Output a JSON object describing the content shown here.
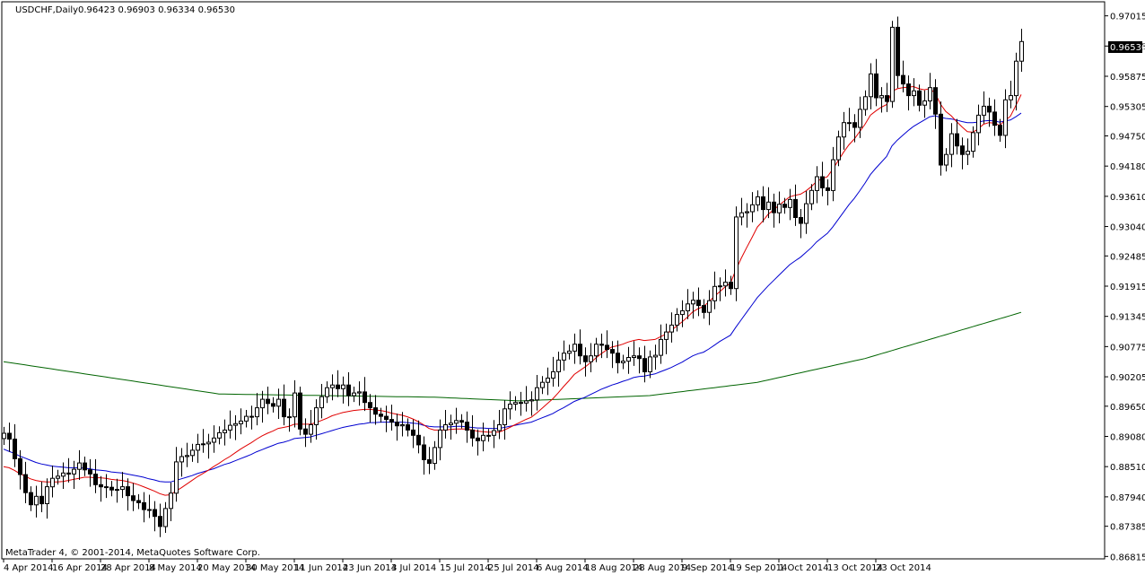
{
  "header": {
    "symbol": "USDCHF,Daily",
    "ohlc": "0.96423 0.96903 0.96334 0.96530"
  },
  "footer": {
    "copyright": "MetaTrader 4, © 2001-2014, MetaQuotes Software Corp."
  },
  "current_price_label": "0.96530",
  "colors": {
    "background": "#ffffff",
    "candle_up_body": "#ffffff",
    "candle_down_body": "#000000",
    "candle_outline": "#000000",
    "ma_fast": "#e00000",
    "ma_medium": "#0000d0",
    "ma_slow": "#006400",
    "price_tag_bg": "#000000",
    "price_tag_text": "#ffffff"
  },
  "chart_data": {
    "type": "candlestick",
    "title": "USDCHF,Daily",
    "ylim": [
      0.8677,
      0.9728
    ],
    "y_ticks": [
      "0.97015",
      "0.96445",
      "0.95875",
      "0.95305",
      "0.94750",
      "0.94180",
      "0.93610",
      "0.93040",
      "0.92485",
      "0.91915",
      "0.91345",
      "0.90775",
      "0.90205",
      "0.89650",
      "0.89080",
      "0.88510",
      "0.87940",
      "0.87385",
      "0.86815"
    ],
    "x_labels": [
      "4 Apr 2014",
      "16 Apr 2014",
      "28 Apr 2014",
      "8 May 2014",
      "20 May 2014",
      "30 May 2014",
      "11 Jun 2014",
      "23 Jun 2014",
      "3 Jul 2014",
      "15 Jul 2014",
      "25 Jul 2014",
      "6 Aug 2014",
      "18 Aug 2014",
      "28 Aug 2014",
      "9 Sep 2014",
      "19 Sep 2014",
      "1 Oct 2014",
      "13 Oct 2014",
      "23 Oct 2014"
    ],
    "x_label_every": 9,
    "close": [
      0.8914,
      0.8903,
      0.8866,
      0.8836,
      0.8802,
      0.8779,
      0.8795,
      0.8781,
      0.8813,
      0.8829,
      0.8833,
      0.8839,
      0.8837,
      0.8846,
      0.8858,
      0.8845,
      0.8837,
      0.8817,
      0.8813,
      0.8812,
      0.8807,
      0.8808,
      0.8813,
      0.8796,
      0.8787,
      0.8783,
      0.877,
      0.877,
      0.8757,
      0.8738,
      0.8772,
      0.8801,
      0.886,
      0.887,
      0.8872,
      0.8882,
      0.8893,
      0.8894,
      0.8897,
      0.8905,
      0.8915,
      0.892,
      0.8929,
      0.8932,
      0.8937,
      0.8946,
      0.8945,
      0.8962,
      0.8978,
      0.897,
      0.8965,
      0.8978,
      0.8945,
      0.8945,
      0.899,
      0.8922,
      0.8912,
      0.893,
      0.8962,
      0.8983,
      0.9,
      0.9005,
      0.8998,
      0.9005,
      0.8985,
      0.899,
      0.8992,
      0.8972,
      0.8962,
      0.895,
      0.8946,
      0.894,
      0.8935,
      0.8928,
      0.893,
      0.892,
      0.891,
      0.8892,
      0.8864,
      0.8857,
      0.8887,
      0.892,
      0.893,
      0.8933,
      0.8938,
      0.8935,
      0.892,
      0.8905,
      0.89,
      0.891,
      0.891,
      0.8919,
      0.893,
      0.896,
      0.8969,
      0.8972,
      0.8971,
      0.8975,
      0.8977,
      0.9,
      0.901,
      0.9018,
      0.903,
      0.9052,
      0.9065,
      0.9069,
      0.9082,
      0.906,
      0.9049,
      0.906,
      0.9082,
      0.908,
      0.9072,
      0.9065,
      0.9047,
      0.905,
      0.9057,
      0.906,
      0.9055,
      0.903,
      0.9058,
      0.9061,
      0.9091,
      0.9105,
      0.9118,
      0.9138,
      0.9145,
      0.9158,
      0.9165,
      0.9155,
      0.9142,
      0.9164,
      0.9191,
      0.9192,
      0.9199,
      0.9187,
      0.9322,
      0.933,
      0.9332,
      0.9345,
      0.936,
      0.9336,
      0.935,
      0.933,
      0.9346,
      0.934,
      0.9355,
      0.9321,
      0.931,
      0.9347,
      0.9372,
      0.9398,
      0.9377,
      0.9372,
      0.943,
      0.9473,
      0.95,
      0.95,
      0.9491,
      0.9525,
      0.9549,
      0.9592,
      0.9547,
      0.9551,
      0.954,
      0.968,
      0.9589,
      0.9573,
      0.9551,
      0.956,
      0.9533,
      0.9541,
      0.9566,
      0.9516,
      0.942,
      0.944,
      0.9479,
      0.9456,
      0.944,
      0.9446,
      0.9481,
      0.9514,
      0.9531,
      0.952,
      0.9495,
      0.9476,
      0.9543,
      0.9551,
      0.9616,
      0.9653
    ],
    "ma_fast": [
      0.8851,
      0.8849,
      0.8844,
      0.8838,
      0.8833,
      0.8828,
      0.8825,
      0.8823,
      0.8822,
      0.8822,
      0.8822,
      0.8823,
      0.8825,
      0.8827,
      0.8829,
      0.8831,
      0.8831,
      0.883,
      0.883,
      0.8829,
      0.8827,
      0.8826,
      0.8825,
      0.8823,
      0.882,
      0.8817,
      0.8813,
      0.8809,
      0.8805,
      0.88,
      0.8797,
      0.8798,
      0.8805,
      0.8811,
      0.8818,
      0.8825,
      0.8832,
      0.8838,
      0.8844,
      0.8851,
      0.8857,
      0.8864,
      0.887,
      0.8877,
      0.8884,
      0.889,
      0.8896,
      0.8903,
      0.8909,
      0.8914,
      0.8918,
      0.8923,
      0.8925,
      0.8927,
      0.8931,
      0.8931,
      0.8931,
      0.8931,
      0.8934,
      0.8938,
      0.8942,
      0.8947,
      0.895,
      0.8953,
      0.8955,
      0.8957,
      0.8958,
      0.8959,
      0.8959,
      0.8958,
      0.8957,
      0.8955,
      0.8952,
      0.895,
      0.8948,
      0.8945,
      0.8941,
      0.8936,
      0.893,
      0.8923,
      0.892,
      0.892,
      0.892,
      0.8921,
      0.8922,
      0.8922,
      0.8922,
      0.892,
      0.8918,
      0.8917,
      0.8916,
      0.8916,
      0.8916,
      0.892,
      0.8925,
      0.893,
      0.8935,
      0.894,
      0.8944,
      0.8952,
      0.8961,
      0.897,
      0.8979,
      0.899,
      0.9002,
      0.9013,
      0.9025,
      0.9032,
      0.9039,
      0.9047,
      0.9056,
      0.9064,
      0.9071,
      0.9077,
      0.9079,
      0.9082,
      0.9086,
      0.9089,
      0.9091,
      0.9089,
      0.909,
      0.9091,
      0.9096,
      0.9101,
      0.9108,
      0.9116,
      0.9124,
      0.9133,
      0.9143,
      0.9149,
      0.9153,
      0.9162,
      0.9172,
      0.9181,
      0.919,
      0.9197,
      0.9222,
      0.9244,
      0.9264,
      0.9283,
      0.9303,
      0.9314,
      0.9327,
      0.9335,
      0.9344,
      0.9352,
      0.936,
      0.9363,
      0.9365,
      0.9371,
      0.9379,
      0.9389,
      0.9394,
      0.9398,
      0.9412,
      0.9428,
      0.9444,
      0.9458,
      0.9469,
      0.9483,
      0.9497,
      0.9514,
      0.9522,
      0.9529,
      0.9534,
      0.9559,
      0.9564,
      0.9566,
      0.9567,
      0.9568,
      0.9564,
      0.9562,
      0.9564,
      0.9556,
      0.9535,
      0.9521,
      0.9513,
      0.9502,
      0.9492,
      0.9483,
      0.9482,
      0.9488,
      0.9497,
      0.95,
      0.9499,
      0.9495,
      0.9504,
      0.9512,
      0.9532,
      0.9553
    ],
    "ma_medium": [
      0.8884,
      0.888,
      0.8876,
      0.8871,
      0.8867,
      0.8863,
      0.8859,
      0.8856,
      0.8854,
      0.8852,
      0.8851,
      0.885,
      0.8849,
      0.8849,
      0.8849,
      0.8848,
      0.8847,
      0.8845,
      0.8844,
      0.8843,
      0.8841,
      0.884,
      0.8839,
      0.8837,
      0.8835,
      0.8833,
      0.8831,
      0.8828,
      0.8826,
      0.8823,
      0.8822,
      0.8822,
      0.8825,
      0.8828,
      0.8831,
      0.8834,
      0.8838,
      0.8841,
      0.8844,
      0.8847,
      0.8851,
      0.8855,
      0.8858,
      0.8862,
      0.8866,
      0.887,
      0.8874,
      0.8879,
      0.8883,
      0.8887,
      0.8891,
      0.8895,
      0.8897,
      0.89,
      0.8904,
      0.8905,
      0.8906,
      0.8907,
      0.891,
      0.8913,
      0.8916,
      0.8919,
      0.8922,
      0.8925,
      0.8927,
      0.8929,
      0.8931,
      0.8932,
      0.8934,
      0.8934,
      0.8935,
      0.8935,
      0.8935,
      0.8935,
      0.8935,
      0.8934,
      0.8933,
      0.8932,
      0.8929,
      0.8927,
      0.8926,
      0.8926,
      0.8926,
      0.8926,
      0.8927,
      0.8927,
      0.8926,
      0.8925,
      0.8924,
      0.8924,
      0.8923,
      0.8923,
      0.8923,
      0.8925,
      0.8927,
      0.8929,
      0.8931,
      0.8933,
      0.8935,
      0.8939,
      0.8943,
      0.8947,
      0.8951,
      0.8957,
      0.8962,
      0.8968,
      0.8974,
      0.8978,
      0.8982,
      0.8987,
      0.8992,
      0.8997,
      0.9001,
      0.9005,
      0.9008,
      0.9012,
      0.9015,
      0.9019,
      0.9021,
      0.9022,
      0.9024,
      0.9026,
      0.903,
      0.9034,
      0.9038,
      0.9043,
      0.9048,
      0.9054,
      0.906,
      0.9064,
      0.9067,
      0.9073,
      0.908,
      0.9087,
      0.9093,
      0.9099,
      0.9114,
      0.9128,
      0.9142,
      0.9156,
      0.917,
      0.9181,
      0.9192,
      0.9202,
      0.9212,
      0.9222,
      0.9232,
      0.9239,
      0.9246,
      0.9255,
      0.9264,
      0.9275,
      0.9283,
      0.9291,
      0.9303,
      0.9317,
      0.9331,
      0.9345,
      0.9357,
      0.9371,
      0.9386,
      0.9402,
      0.9414,
      0.9425,
      0.9436,
      0.9456,
      0.9467,
      0.9476,
      0.9485,
      0.9493,
      0.9499,
      0.9505,
      0.9511,
      0.9513,
      0.951,
      0.9508,
      0.9507,
      0.9505,
      0.9502,
      0.95,
      0.95,
      0.9501,
      0.9503,
      0.9504,
      0.9503,
      0.9501,
      0.9503,
      0.9505,
      0.9511,
      0.9518
    ]
  },
  "ma_series": {
    "fast_label": "",
    "medium_label": "",
    "slow_label": ""
  }
}
